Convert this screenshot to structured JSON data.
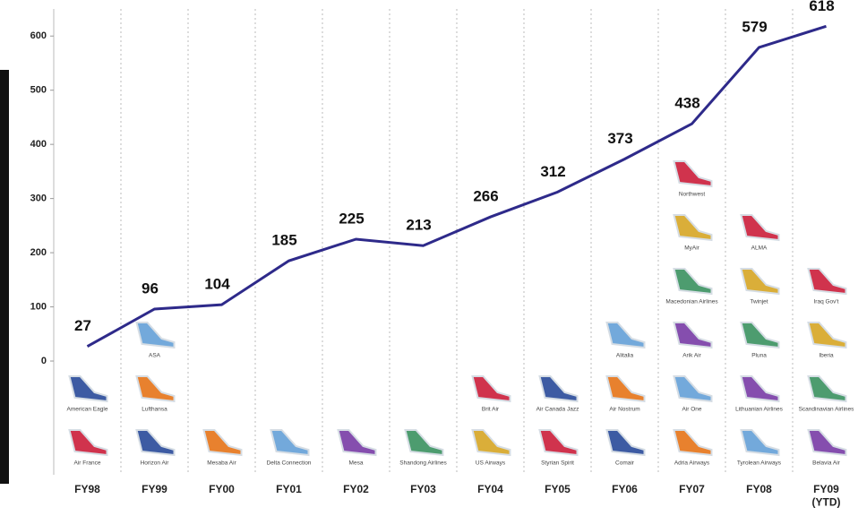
{
  "chart_data": {
    "type": "line",
    "categories": [
      "FY98",
      "FY99",
      "FY00",
      "FY01",
      "FY02",
      "FY03",
      "FY04",
      "FY05",
      "FY06",
      "FY07",
      "FY08",
      "FY09\n(YTD)"
    ],
    "values": [
      27,
      96,
      104,
      185,
      225,
      213,
      266,
      312,
      373,
      438,
      579,
      618
    ],
    "color": "#2e2a8a",
    "ylim": [
      -210,
      650
    ],
    "yticks": [
      0,
      100,
      200,
      300,
      400,
      500,
      600
    ],
    "airlines": [
      [
        "Air France",
        "American Eagle"
      ],
      [
        "Horizon Air",
        "Lufthansa",
        "ASA"
      ],
      [
        "Mesaba Air"
      ],
      [
        "Delta Connection"
      ],
      [
        "Mesa"
      ],
      [
        "Shandong Airlines"
      ],
      [
        "US Airways",
        "Brit Air"
      ],
      [
        "Styrian Spirit",
        "Air Canada Jazz"
      ],
      [
        "Comair",
        "Air Nostrum",
        "Alitalia"
      ],
      [
        "Adria Airways",
        "Air One",
        "Arik Air",
        "Macedonian Airlines",
        "MyAir",
        "Northwest"
      ],
      [
        "Tyrolean Airways",
        "Lithuanian Airlines",
        "Pluna",
        "Twinjet",
        "ALMA"
      ],
      [
        "Belavia Air",
        "Scandinavian Airlines",
        "Iberia",
        "Iraq Gov't"
      ]
    ]
  }
}
